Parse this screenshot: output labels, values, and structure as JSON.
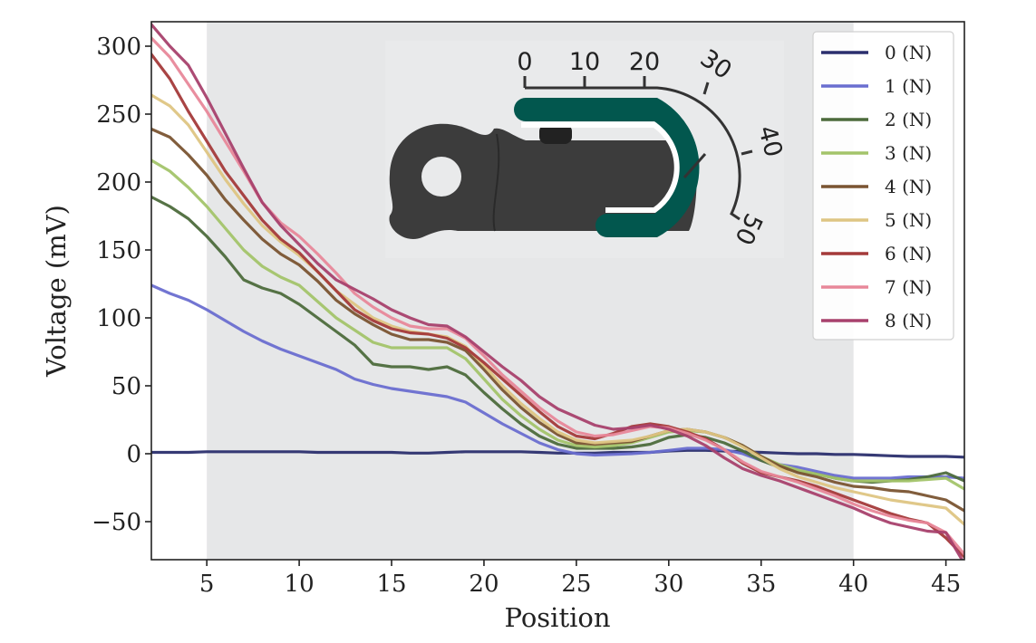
{
  "chart_data": {
    "type": "line",
    "xlabel": "Position",
    "ylabel": "Voltage (mV)",
    "xlim": [
      2,
      46
    ],
    "ylim": [
      -78,
      318
    ],
    "xticks": [
      5,
      10,
      15,
      20,
      25,
      30,
      35,
      40,
      45
    ],
    "yticks": [
      -50,
      0,
      50,
      100,
      150,
      200,
      250,
      300
    ],
    "grid": false,
    "legend_position": "top-right",
    "shaded_region": [
      5,
      40
    ],
    "x": [
      2,
      3,
      4,
      5,
      6,
      7,
      8,
      9,
      10,
      11,
      12,
      13,
      14,
      15,
      16,
      17,
      18,
      19,
      20,
      21,
      22,
      23,
      24,
      25,
      26,
      27,
      28,
      29,
      30,
      31,
      32,
      33,
      34,
      35,
      36,
      37,
      38,
      39,
      40,
      41,
      42,
      43,
      44,
      45,
      46
    ],
    "series": [
      {
        "name": "0 (N)",
        "color": "#2b2f6e",
        "values": [
          1,
          1,
          1,
          1.5,
          1.5,
          1.5,
          1.5,
          1.5,
          1.5,
          1,
          1,
          1,
          1,
          1,
          0.5,
          0.5,
          1,
          1.5,
          1.5,
          1.5,
          1.5,
          1,
          0.5,
          0.5,
          0.5,
          1,
          1,
          1,
          2,
          2.5,
          2.5,
          2,
          1.5,
          1,
          0.5,
          0,
          0,
          -0.5,
          -0.5,
          -1,
          -1.5,
          -2,
          -2,
          -2,
          -2.5
        ]
      },
      {
        "name": "1 (N)",
        "color": "#6a6ed0",
        "values": [
          124,
          118,
          113,
          106,
          98,
          90,
          83,
          77,
          72,
          67,
          62,
          55,
          51,
          48,
          46,
          44,
          42,
          38,
          30,
          22,
          15,
          8,
          3,
          0,
          -1,
          -0.5,
          0,
          1,
          2.5,
          4,
          4,
          3,
          0,
          -5,
          -8,
          -10,
          -13,
          -16,
          -18,
          -18,
          -18,
          -17,
          -17,
          -17,
          -18
        ]
      },
      {
        "name": "2 (N)",
        "color": "#4d6b3c",
        "values": [
          189,
          182,
          173,
          160,
          145,
          128,
          122,
          118,
          110,
          100,
          90,
          80,
          66,
          64,
          64,
          62,
          64,
          58,
          45,
          33,
          22,
          13,
          7,
          4,
          4,
          4,
          5,
          7,
          12,
          14,
          12,
          8,
          2,
          -5,
          -10,
          -13,
          -15,
          -18,
          -20,
          -21,
          -20,
          -19,
          -17,
          -14,
          -20
        ]
      },
      {
        "name": "3 (N)",
        "color": "#a3c46a",
        "values": [
          216,
          208,
          196,
          182,
          166,
          150,
          138,
          130,
          124,
          112,
          100,
          91,
          82,
          78,
          78,
          78,
          78,
          70,
          55,
          40,
          28,
          18,
          10,
          6,
          5,
          6,
          8,
          12,
          16,
          17,
          16,
          12,
          6,
          -2,
          -8,
          -12,
          -15,
          -18,
          -20,
          -20,
          -20,
          -20,
          -19,
          -18,
          -26
        ]
      },
      {
        "name": "4 (N)",
        "color": "#7a5432",
        "values": [
          239,
          233,
          220,
          205,
          187,
          172,
          158,
          147,
          139,
          127,
          113,
          103,
          95,
          88,
          84,
          84,
          82,
          76,
          62,
          47,
          34,
          23,
          14,
          8,
          7,
          8,
          9,
          13,
          17,
          18,
          16,
          12,
          6,
          -2,
          -9,
          -14,
          -17,
          -21,
          -24,
          -25,
          -27,
          -28,
          -31,
          -34,
          -42
        ]
      },
      {
        "name": "5 (N)",
        "color": "#dec583",
        "values": [
          264,
          256,
          242,
          222,
          202,
          184,
          168,
          156,
          146,
          134,
          120,
          110,
          100,
          94,
          90,
          88,
          86,
          79,
          65,
          50,
          37,
          26,
          16,
          10,
          8,
          9,
          10,
          13,
          17,
          18,
          16,
          12,
          5,
          -3,
          -11,
          -17,
          -21,
          -25,
          -28,
          -31,
          -34,
          -36,
          -38,
          -40,
          -52
        ]
      },
      {
        "name": "6 (N)",
        "color": "#a43a3a",
        "values": [
          294,
          276,
          252,
          230,
          208,
          190,
          172,
          158,
          148,
          134,
          120,
          106,
          98,
          92,
          89,
          88,
          85,
          78,
          67,
          55,
          43,
          31,
          20,
          13,
          11,
          15,
          20,
          22,
          20,
          16,
          11,
          3,
          -7,
          -14,
          -17,
          -20,
          -24,
          -29,
          -34,
          -39,
          -44,
          -48,
          -51,
          -62,
          -76
        ]
      },
      {
        "name": "7 (N)",
        "color": "#e8889a",
        "values": [
          306,
          292,
          272,
          252,
          230,
          208,
          185,
          170,
          160,
          147,
          133,
          118,
          108,
          100,
          94,
          92,
          92,
          85,
          72,
          58,
          46,
          34,
          24,
          16,
          13,
          14,
          17,
          20,
          19,
          15,
          10,
          3,
          -6,
          -13,
          -17,
          -21,
          -26,
          -31,
          -37,
          -42,
          -46,
          -49,
          -51,
          -58,
          -74
        ]
      },
      {
        "name": "8 (N)",
        "color": "#a8416d",
        "values": [
          316,
          300,
          286,
          262,
          236,
          210,
          185,
          168,
          154,
          140,
          128,
          121,
          114,
          106,
          100,
          95,
          94,
          86,
          75,
          64,
          54,
          42,
          33,
          27,
          21,
          18,
          19,
          21,
          18,
          13,
          6,
          -3,
          -11,
          -16,
          -20,
          -25,
          -30,
          -35,
          -40,
          -46,
          -51,
          -54,
          -57,
          -58,
          -81
        ]
      }
    ],
    "inset_scale": {
      "labels": [
        "0",
        "10",
        "20",
        "30",
        "40",
        "50"
      ]
    }
  },
  "colors": {
    "shade": "#e6e7e8",
    "device_body": "#3c3c3c",
    "device_clip": "#02574e",
    "scale_line": "#333333"
  }
}
